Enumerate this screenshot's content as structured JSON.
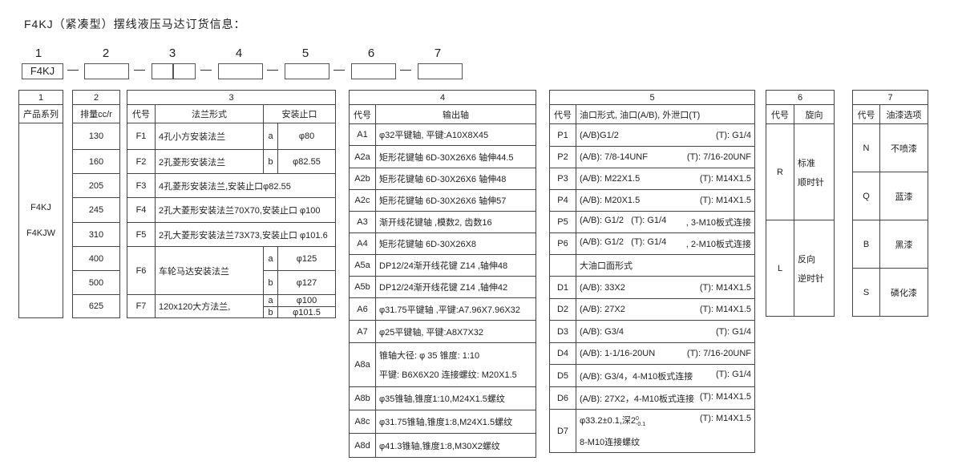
{
  "title": "F4KJ（紧凑型）摆线液压马达订货信息：",
  "code": {
    "numbers": [
      "1",
      "2",
      "3",
      "4",
      "5",
      "6",
      "7"
    ],
    "first": "F4KJ"
  },
  "t1": {
    "num": "1",
    "header": "产品系列",
    "values": [
      "F4KJ",
      "F4KJW"
    ]
  },
  "t2": {
    "num": "2",
    "header": "排量cc/r",
    "values": [
      "130",
      "160",
      "205",
      "245",
      "310",
      "400",
      "500",
      "625"
    ]
  },
  "t3": {
    "num": "3",
    "h_code": "代号",
    "h_form": "法兰形式",
    "h_pilot": "安装止口",
    "rows": [
      {
        "code": "F1",
        "form": "4孔小方安装法兰",
        "opt": "a",
        "pilot": "φ80"
      },
      {
        "code": "F2",
        "form": "2孔菱形安装法兰",
        "opt": "b",
        "pilot": "φ82.55"
      },
      {
        "code": "F3",
        "form": "4孔菱形安装法兰,安装止口φ82.55"
      },
      {
        "code": "F4",
        "form": "2孔大菱形安装法兰70X70,安装止口 φ100"
      },
      {
        "code": "F5",
        "form": "2孔大菱形安装法兰73X73,安装止口 φ101.6"
      },
      {
        "code": "F6",
        "form": "车轮马达安装法兰",
        "opt": "a",
        "pilot": "φ125",
        "opt2": "b",
        "pilot2": "φ127"
      },
      {
        "code": "F7",
        "form": "120x120大方法兰,",
        "opt": "a",
        "pilot": "φ100",
        "opt2": "b",
        "pilot2": "φ101.5"
      }
    ]
  },
  "t4": {
    "num": "4",
    "h_code": "代号",
    "h_shaft": "输出轴",
    "rows": [
      {
        "code": "A1",
        "text": "φ32平键轴, 平键:A10X8X45"
      },
      {
        "code": "A2a",
        "text": "矩形花键轴 6D-30X26X6 轴伸44.5"
      },
      {
        "code": "A2b",
        "text": "矩形花键轴 6D-30X26X6  轴伸48"
      },
      {
        "code": "A2c",
        "text": "矩形花键轴 6D-30X26X6  轴伸57"
      },
      {
        "code": "A3",
        "text": "渐开线花键轴 ,模数2, 齿数16"
      },
      {
        "code": "A4",
        "text": "矩形花键轴 6D-30X26X8"
      },
      {
        "code": "A5a",
        "text": "DP12/24渐开线花键 Z14 ,轴伸48"
      },
      {
        "code": "A5b",
        "text": "DP12/24渐开线花键 Z14 ,轴伸42"
      },
      {
        "code": "A6",
        "text": "φ31.75平键轴 ,平键:A7.96X7.96X32"
      },
      {
        "code": "A7",
        "text": "φ25平键轴, 平键:A8X7X32"
      },
      {
        "code": "A8a",
        "text": "锥轴大径: φ 35 锥度:  1:10",
        "text2": "平键: B6X6X20 连接螺纹: M20X1.5"
      },
      {
        "code": "A8b",
        "text": "φ35锥轴,锥度1:10,M24X1.5螺纹"
      },
      {
        "code": "A8c",
        "text": "φ31.75锥轴,锥度1:8,M24X1.5螺纹"
      },
      {
        "code": "A8d",
        "text": "φ41.3锥轴,锥度1:8,M30X2螺纹"
      }
    ]
  },
  "t5": {
    "num": "5",
    "h_code": "代号",
    "h_port": "油口形式, 油口(A/B), 外泄口(T)",
    "big_port": "大油口面形式",
    "rows": [
      {
        "code": "P1",
        "ab": "(A/B)G1/2",
        "t": "(T): G1/4"
      },
      {
        "code": "P2",
        "ab": "(A/B): 7/8-14UNF",
        "t": "(T): 7/16-20UNF"
      },
      {
        "code": "P3",
        "ab": "(A/B): M22X1.5",
        "t": "(T): M14X1.5"
      },
      {
        "code": "P4",
        "ab": "(A/B): M20X1.5",
        "t": "(T): M14X1.5"
      },
      {
        "code": "P5",
        "ab": "(A/B): G1/2   (T): G1/4",
        "t": ", 3-M10板式连接"
      },
      {
        "code": "P6",
        "ab": "(A/B): G1/2   (T): G1/4",
        "t": ", 2-M10板式连接"
      },
      {
        "code": "D1",
        "ab": "(A/B): 33X2",
        "t": "(T): M14X1.5"
      },
      {
        "code": "D2",
        "ab": "(A/B): 27X2",
        "t": "(T): M14X1.5"
      },
      {
        "code": "D3",
        "ab": "(A/B): G3/4",
        "t": "(T): G1/4"
      },
      {
        "code": "D4",
        "ab": "(A/B): 1-1/16-20UN",
        "t": "(T): 7/16-20UNF"
      },
      {
        "code": "D5",
        "ab": "(A/B): G3/4，4-M10板式连接",
        "t": "(T): G1/4"
      },
      {
        "code": "D6",
        "ab": "(A/B): 27X2，4-M10板式连接",
        "t": "(T): M14X1.5"
      },
      {
        "code": "D7",
        "ab": "φ33.2±0.1,深2",
        "sup": "0",
        "sub": "-0.1",
        "t": "(T): M14X1.5",
        "ab2": "8-M10连接螺纹"
      }
    ]
  },
  "t6": {
    "num": "6",
    "h_code": "代号",
    "h_dir": "旋向",
    "rows": [
      {
        "code": "R",
        "l1": "标准",
        "l2": "顺时针"
      },
      {
        "code": "L",
        "l1": "反向",
        "l2": "逆时针"
      }
    ]
  },
  "t7": {
    "num": "7",
    "h_code": "代号",
    "h_paint": "油漆选项",
    "rows": [
      {
        "code": "N",
        "text": "不喷漆"
      },
      {
        "code": "Q",
        "text": "蓝漆"
      },
      {
        "code": "B",
        "text": "黑漆"
      },
      {
        "code": "S",
        "text": "磷化漆"
      }
    ]
  }
}
